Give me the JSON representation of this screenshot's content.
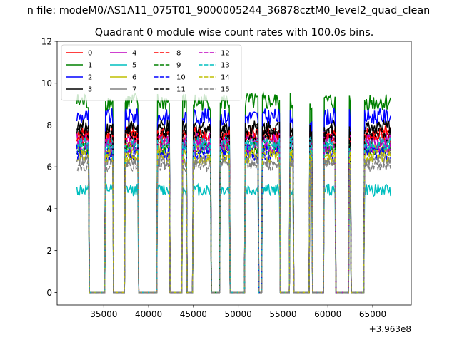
{
  "chart_data": {
    "type": "line",
    "suptitle": "n file: modeM0/AS1A11_075T01_9000005244_36878cztM0_level2_quad_clean",
    "title": "Quadrant 0 module wise count rates with 100.0s bins.",
    "xlabel": "",
    "ylabel": "",
    "x_offset_label": "+3.963e8",
    "xlim": [
      29800,
      69300
    ],
    "ylim": [
      -0.6,
      12
    ],
    "xticks": [
      35000,
      40000,
      45000,
      50000,
      55000,
      60000,
      65000
    ],
    "xtick_labels": [
      "35000",
      "40000",
      "45000",
      "50000",
      "55000",
      "60000",
      "65000"
    ],
    "yticks": [
      0,
      2,
      4,
      6,
      8,
      10,
      12
    ],
    "ytick_labels": [
      "0",
      "2",
      "4",
      "6",
      "8",
      "10",
      "12"
    ],
    "grid": false,
    "legend_location": "upper-left",
    "legend_columns": 4,
    "x_start": 32000,
    "x_step": 100,
    "off_value": 0,
    "on_intervals": [
      [
        32000,
        33300
      ],
      [
        35200,
        36000
      ],
      [
        37400,
        38800
      ],
      [
        41000,
        42300
      ],
      [
        43800,
        44200
      ],
      [
        45000,
        46900
      ],
      [
        48000,
        49000
      ],
      [
        50800,
        52200
      ],
      [
        52700,
        54600
      ],
      [
        55800,
        56100
      ],
      [
        58000,
        58200
      ],
      [
        59600,
        60800
      ],
      [
        62400,
        62500
      ],
      [
        64100,
        67000
      ]
    ],
    "series": [
      {
        "name": "0",
        "color": "#ff0000",
        "dash": "solid",
        "level": 7.6,
        "amp": 0.35
      },
      {
        "name": "1",
        "color": "#008000",
        "dash": "solid",
        "level": 9.1,
        "amp": 0.45
      },
      {
        "name": "2",
        "color": "#0000ff",
        "dash": "solid",
        "level": 8.4,
        "amp": 0.4
      },
      {
        "name": "3",
        "color": "#000000",
        "dash": "solid",
        "level": 7.9,
        "amp": 0.35
      },
      {
        "name": "4",
        "color": "#bf00bf",
        "dash": "solid",
        "level": 7.3,
        "amp": 0.35
      },
      {
        "name": "5",
        "color": "#00bfbf",
        "dash": "solid",
        "level": 4.9,
        "amp": 0.3
      },
      {
        "name": "6",
        "color": "#bfbf00",
        "dash": "solid",
        "level": 6.8,
        "amp": 0.3
      },
      {
        "name": "7",
        "color": "#808080",
        "dash": "solid",
        "level": 6.3,
        "amp": 0.3
      },
      {
        "name": "8",
        "color": "#ff0000",
        "dash": "dashed",
        "level": 7.4,
        "amp": 0.35
      },
      {
        "name": "9",
        "color": "#008000",
        "dash": "dashed",
        "level": 6.9,
        "amp": 0.35
      },
      {
        "name": "10",
        "color": "#0000ff",
        "dash": "dashed",
        "level": 6.7,
        "amp": 0.4
      },
      {
        "name": "11",
        "color": "#000000",
        "dash": "dashed",
        "level": 7.6,
        "amp": 0.35
      },
      {
        "name": "12",
        "color": "#bf00bf",
        "dash": "dashed",
        "level": 7.0,
        "amp": 0.35
      },
      {
        "name": "13",
        "color": "#00bfbf",
        "dash": "dashed",
        "level": 7.1,
        "amp": 0.35
      },
      {
        "name": "14",
        "color": "#bfbf00",
        "dash": "dashed",
        "level": 6.5,
        "amp": 0.35
      },
      {
        "name": "15",
        "color": "#808080",
        "dash": "dashed",
        "level": 6.1,
        "amp": 0.3
      }
    ]
  }
}
